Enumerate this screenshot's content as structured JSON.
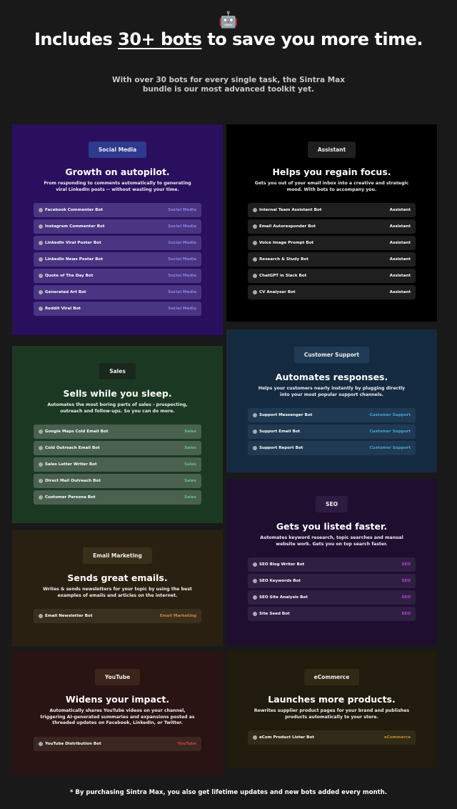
{
  "header": {
    "icon": "🤖",
    "title_before": "Includes",
    "title_highlight": "30+ bots",
    "title_after": "to save you more time.",
    "subtitle": "With over 30 bots for every single task, the Sintra Max bundle is our most advanced toolkit yet."
  },
  "cards": [
    {
      "tag": "Social Media",
      "heading": "Growth on autopilot.",
      "description": "From responding to comments automatically to generating viral LinkedIn posts -- without wasting your time.",
      "bots": [
        "Facebook Commenter Bot",
        "Instagram Commenter Bot",
        "LinkedIn Viral Poster Bot",
        "LinkedIn News Poster Bot",
        "Quote of The Day Bot",
        "Generated Art Bot",
        "Reddit Viral Bot"
      ]
    },
    {
      "tag": "Assistant",
      "heading": "Helps you regain focus.",
      "description": "Gets you out of your email inbox into a creative and strategic mood. With bots to accompany you.",
      "bots": [
        "Internal Team Assistant Bot",
        "Email Autoresponder Bot",
        "Voice Image Prompt Bot",
        "Research & Study Bot",
        "ChatGPT in Slack Bot",
        "CV Analyser Bot"
      ]
    },
    {
      "tag": "Sales",
      "heading": "Sells while you sleep.",
      "description": "Automates the most boring parts of sales - prospecting, outreach and follow-ups. So you can do more.",
      "bots": [
        "Google Maps Cold Email Bot",
        "Cold Outreach Email Bot",
        "Sales Letter Writer Bot",
        "Direct Mail Outreach Bot",
        "Customer Persona Bot"
      ]
    },
    {
      "tag": "Customer Support",
      "heading": "Automates responses.",
      "description": "Helps your customers nearly instantly by plugging directly into your most popular support channels.",
      "bots": [
        "Support Messenger Bot",
        "Support Email Bot",
        "Support Report Bot"
      ]
    },
    {
      "tag": "Email Marketing",
      "heading": "Sends great emails.",
      "description": "Writes & sends newsletters for your topic by using the best examples of emails and articles on the internet.",
      "bots": [
        "Email Newsletter Bot"
      ]
    },
    {
      "tag": "SEO",
      "heading": "Gets you listed faster.",
      "description": "Automates keyword research, topic searches and manual website work. Gets you on top search faster.",
      "bots": [
        "SEO Blog Writer Bot",
        "SEO Keywords Bot",
        "SEO Site Analysis Bot",
        "Site Seed Bot"
      ]
    },
    {
      "tag": "YouTube",
      "heading": "Widens your impact.",
      "description": "Automatically shares YouTube videos on your channel, triggering AI-generated summaries and expansions posted as threaded updates on Facebook, LinkedIn, or Twitter.",
      "bots": [
        "YouTube Distribution Bot"
      ]
    },
    {
      "tag": "eCommerce",
      "heading": "Launches more products.",
      "description": "Rewrites supplier product pages for your brand and publishes products automatically to your store.",
      "bots": [
        "eCom Product Lister Bot"
      ]
    }
  ],
  "footer": "* By purchasing Sintra Max, you also get lifetime updates and new bots added every month."
}
